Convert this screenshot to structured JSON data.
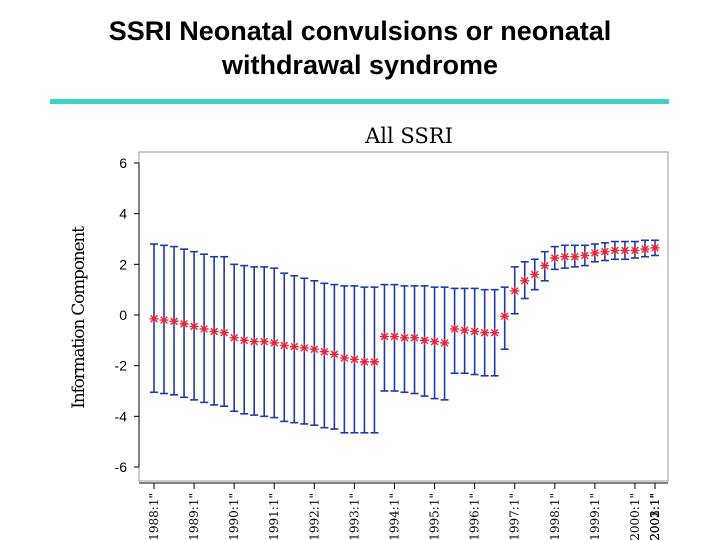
{
  "slide": {
    "title_line1": "SSRI Neonatal convulsions or neonatal",
    "title_line2": "withdrawal syndrome",
    "rule_color": "#3fcfc3"
  },
  "chart_data": {
    "type": "line",
    "title": "All SSRI",
    "xlabel": "",
    "ylabel": "Information Component",
    "ylim": [
      -6,
      6
    ],
    "yticks": [
      -6,
      -4,
      -2,
      0,
      2,
      4,
      6
    ],
    "grid": false,
    "legend": "none",
    "x_tick_labels": [
      "\"1988:1\"",
      "\"1989:1\"",
      "\"1990:1\"",
      "\"1991:1\"",
      "\"1992:1\"",
      "\"1993:1\"",
      "\"1994:1\"",
      "\"1995:1\"",
      "\"1996:1\"",
      "\"1997:1\"",
      "\"1998:1\"",
      "\"1999:1\"",
      "\"2000:1\"",
      "\"2001:1\"",
      "\"2002:1\"",
      "\"2003:1\""
    ],
    "points_per_year": 4,
    "series": [
      {
        "ic": [
          -0.15,
          -0.2,
          -0.25,
          -0.35,
          -0.45,
          -0.55,
          -0.65,
          -0.7,
          -0.9,
          -1.0,
          -1.05,
          -1.05,
          -1.1,
          -1.2,
          -1.25,
          -1.3,
          -1.35,
          -1.45,
          -1.55,
          -1.7,
          -1.75,
          -1.85,
          -1.85,
          -0.85,
          -0.85,
          -0.9,
          -0.9,
          -1.0,
          -1.05,
          -1.1,
          -0.55,
          -0.6,
          -0.65,
          -0.7,
          -0.7,
          -0.05,
          0.95,
          1.35,
          1.6,
          1.95,
          2.25,
          2.3,
          2.3,
          2.35,
          2.45,
          2.5,
          2.55,
          2.55,
          2.55,
          2.6,
          2.65
        ],
        "upper": [
          2.8,
          2.75,
          2.7,
          2.6,
          2.5,
          2.4,
          2.3,
          2.3,
          2.0,
          1.95,
          1.9,
          1.9,
          1.85,
          1.65,
          1.55,
          1.45,
          1.35,
          1.25,
          1.2,
          1.15,
          1.15,
          1.1,
          1.1,
          1.2,
          1.2,
          1.15,
          1.15,
          1.15,
          1.1,
          1.1,
          1.05,
          1.05,
          1.05,
          1.0,
          1.0,
          1.1,
          1.9,
          2.1,
          2.2,
          2.5,
          2.7,
          2.75,
          2.75,
          2.75,
          2.8,
          2.85,
          2.9,
          2.9,
          2.9,
          2.95,
          2.95
        ],
        "lower": [
          -3.05,
          -3.1,
          -3.15,
          -3.25,
          -3.35,
          -3.45,
          -3.55,
          -3.6,
          -3.8,
          -3.9,
          -3.95,
          -4.0,
          -4.05,
          -4.2,
          -4.25,
          -4.3,
          -4.35,
          -4.45,
          -4.5,
          -4.65,
          -4.65,
          -4.65,
          -4.65,
          -3.0,
          -3.0,
          -3.05,
          -3.1,
          -3.2,
          -3.3,
          -3.35,
          -2.3,
          -2.3,
          -2.35,
          -2.4,
          -2.4,
          -1.35,
          0.05,
          0.65,
          1.0,
          1.35,
          1.8,
          1.85,
          1.9,
          1.95,
          2.1,
          2.15,
          2.2,
          2.2,
          2.25,
          2.3,
          2.35
        ]
      }
    ],
    "colors": {
      "interval": "#1f3aa8",
      "point": "#e3253a",
      "axis": "#000000",
      "frame": "#9b9b9b"
    }
  }
}
